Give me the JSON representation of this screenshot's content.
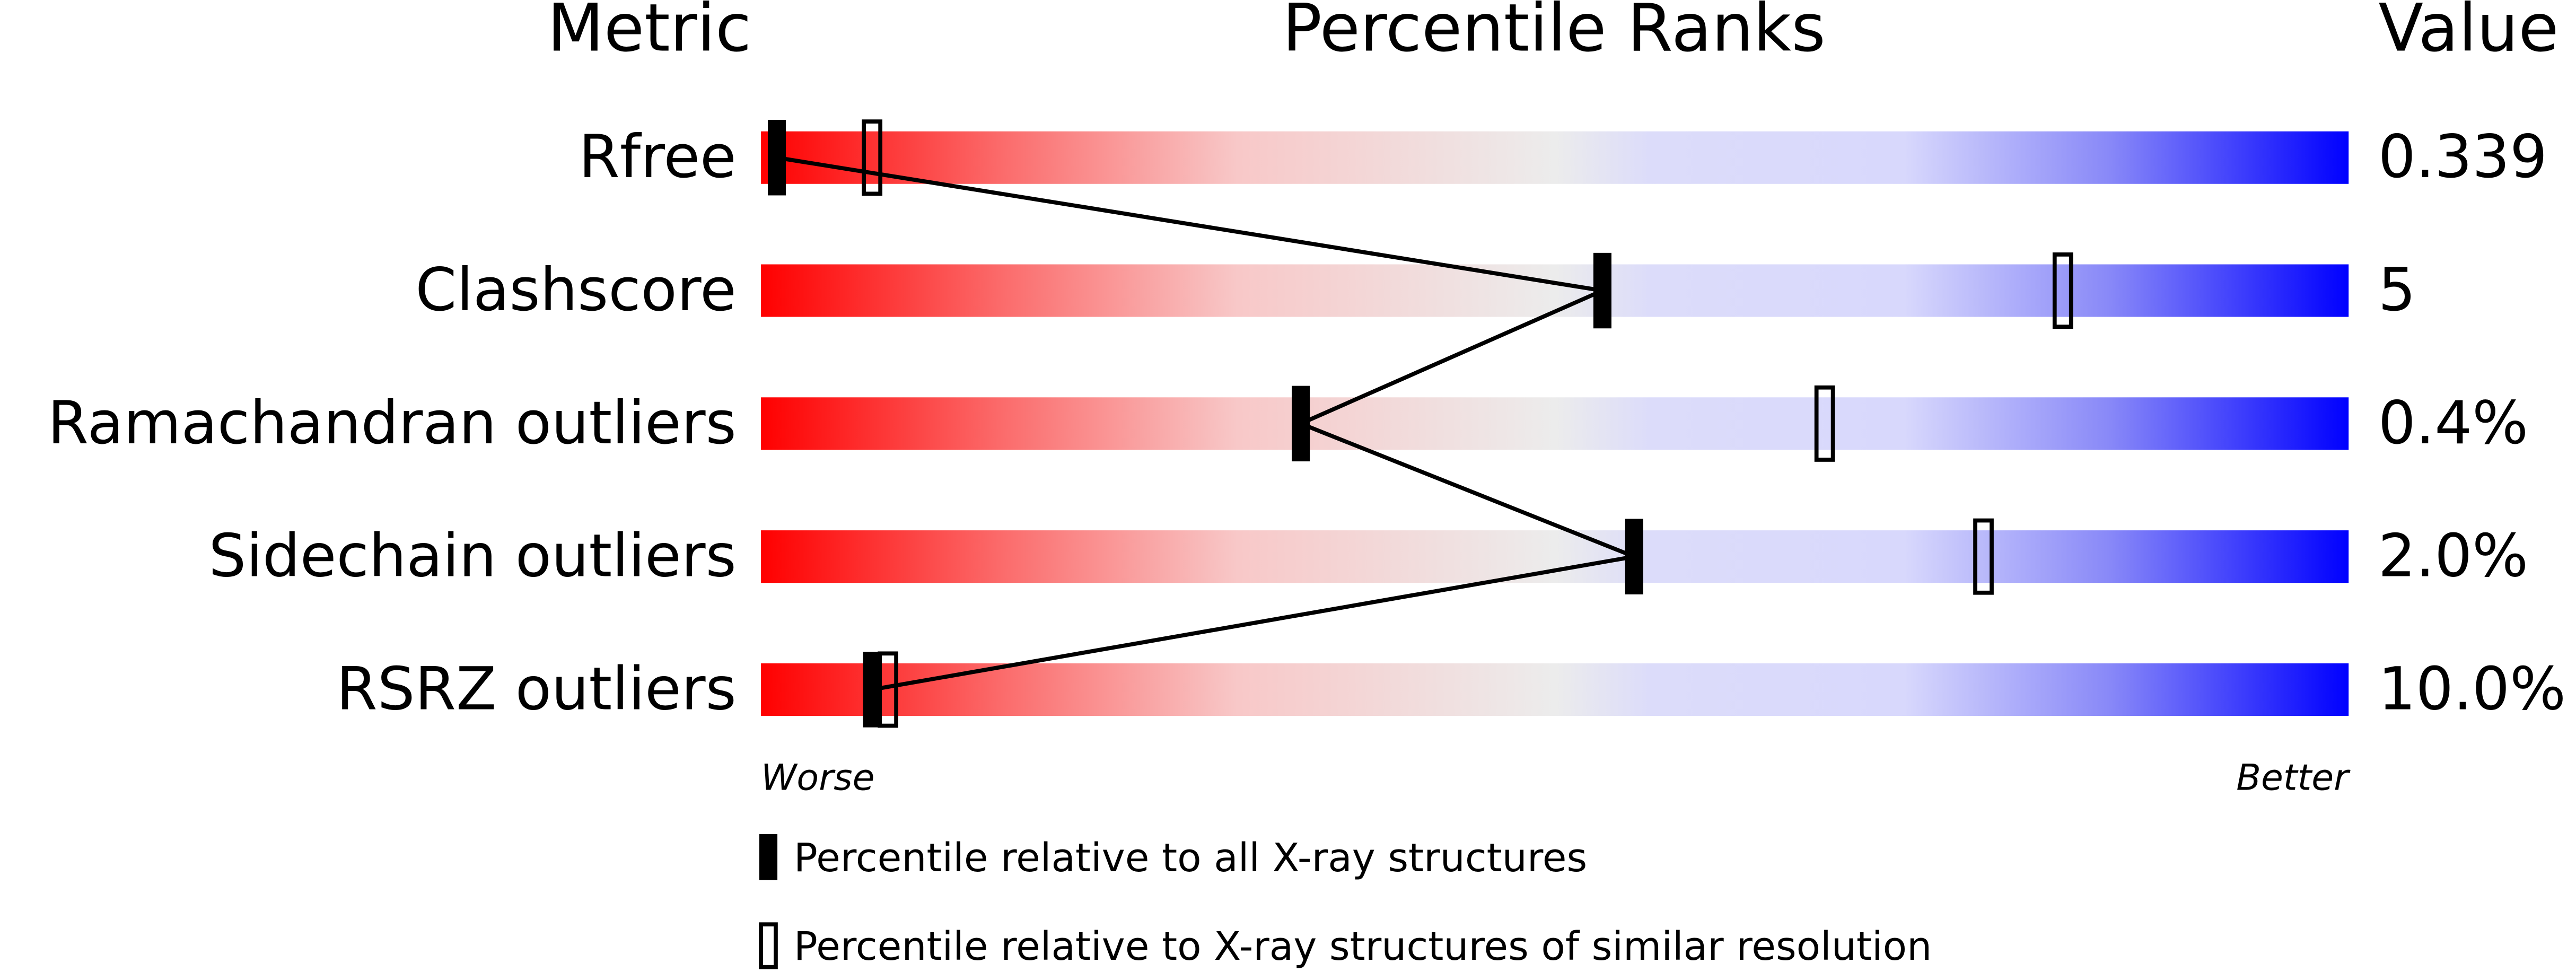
{
  "chart_data": {
    "type": "slider",
    "headers": [
      "Metric",
      "Percentile Ranks",
      "Value"
    ],
    "categories": [
      "Rfree",
      "Clashscore",
      "Ramachandran outliers",
      "Sidechain outliers",
      "RSRZ outliers"
    ],
    "metric_values": [
      "0.339",
      "5",
      "0.4%",
      "2.0%",
      "10.0%"
    ],
    "series": [
      {
        "name": "Percentile relative to all X-ray structures",
        "style": "filled",
        "color": "#000000",
        "values": [
          1,
          53,
          34,
          55,
          7
        ]
      },
      {
        "name": "Percentile relative to X-ray structures of similar resolution",
        "style": "hollow",
        "color": "#000000",
        "values": [
          7,
          82,
          67,
          77,
          8
        ]
      }
    ],
    "xlim": [
      0,
      100
    ],
    "end_labels": [
      "Worse",
      "Better"
    ]
  }
}
